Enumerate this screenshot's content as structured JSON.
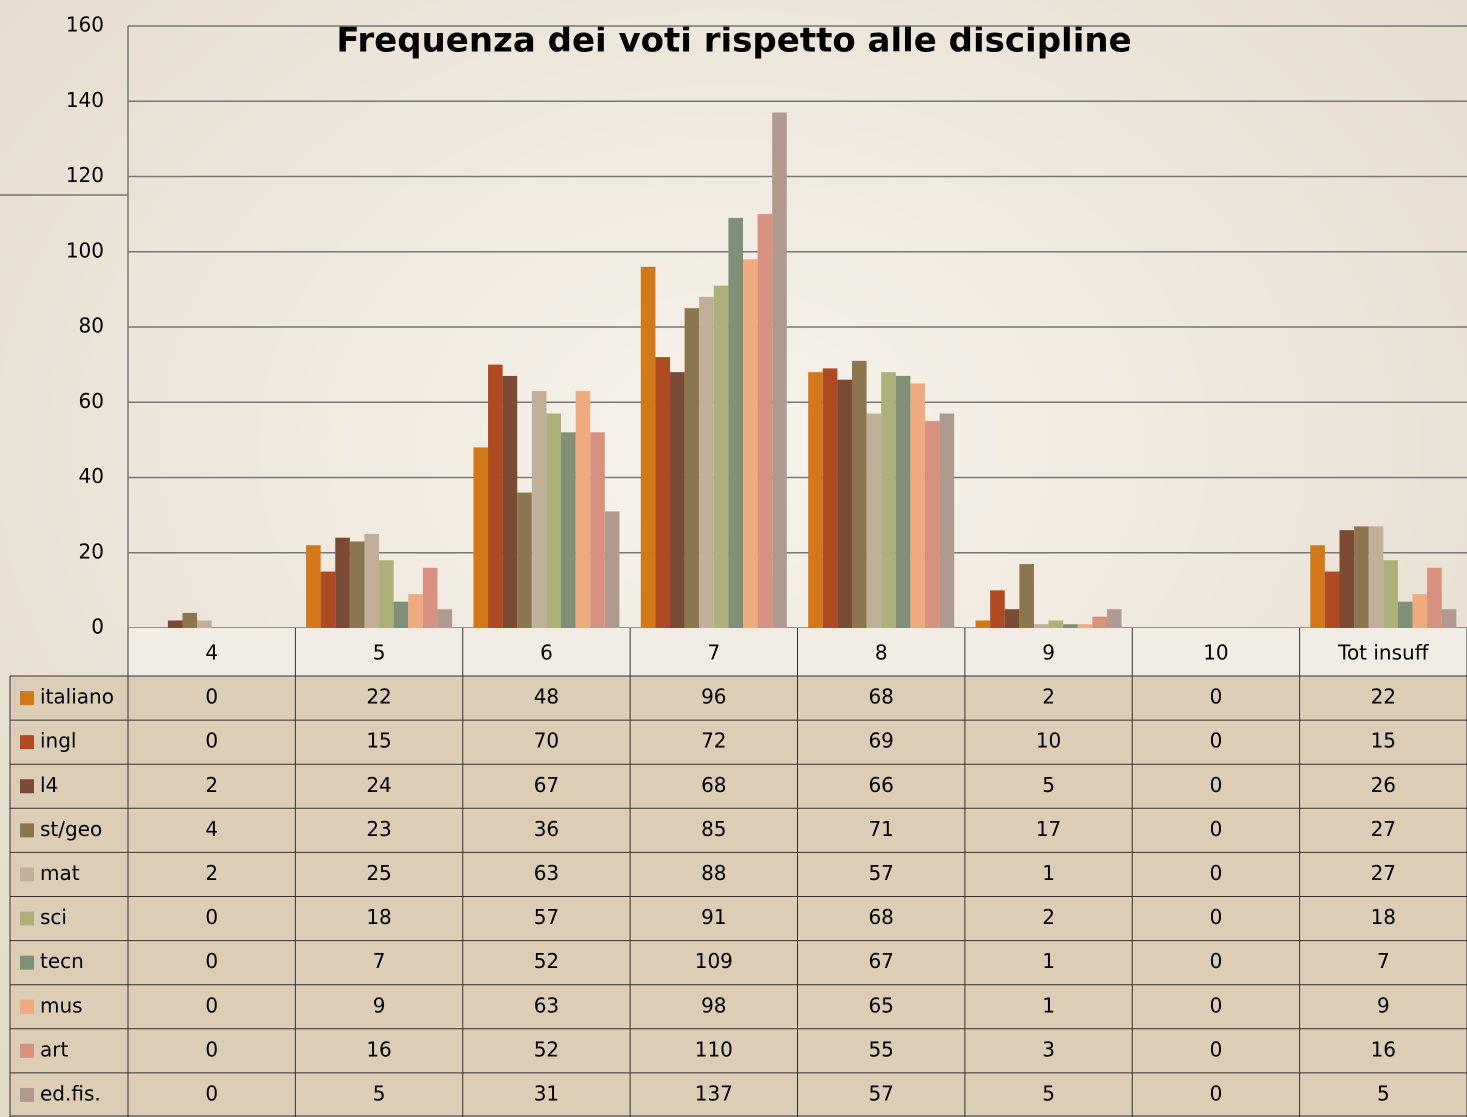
{
  "chart_data": {
    "type": "bar",
    "title": "Frequenza dei voti rispetto alle discipline",
    "categories": [
      "4",
      "5",
      "6",
      "7",
      "8",
      "9",
      "10",
      "Tot insuff"
    ],
    "ylim": [
      0,
      160
    ],
    "yticks": [
      0,
      20,
      40,
      60,
      80,
      100,
      120,
      140,
      160
    ],
    "grid": true,
    "series": [
      {
        "name": "italiano",
        "color": "#d2781a",
        "values": [
          0,
          22,
          48,
          96,
          68,
          2,
          0,
          22
        ]
      },
      {
        "name": "ingl",
        "color": "#b04a22",
        "values": [
          0,
          15,
          70,
          72,
          69,
          10,
          0,
          15
        ]
      },
      {
        "name": "l4",
        "color": "#7a4a35",
        "values": [
          2,
          24,
          67,
          68,
          66,
          5,
          0,
          26
        ]
      },
      {
        "name": "st/geo",
        "color": "#8c7650",
        "values": [
          4,
          23,
          36,
          85,
          71,
          17,
          0,
          27
        ]
      },
      {
        "name": "mat",
        "color": "#c0b09a",
        "values": [
          2,
          25,
          63,
          88,
          57,
          1,
          0,
          27
        ]
      },
      {
        "name": "sci",
        "color": "#aeb07a",
        "values": [
          0,
          18,
          57,
          91,
          68,
          2,
          0,
          18
        ]
      },
      {
        "name": "tecn",
        "color": "#7f8f78",
        "values": [
          0,
          7,
          52,
          109,
          67,
          1,
          0,
          7
        ]
      },
      {
        "name": "mus",
        "color": "#f0aa80",
        "values": [
          0,
          9,
          63,
          98,
          65,
          1,
          0,
          9
        ]
      },
      {
        "name": "art",
        "color": "#d89080",
        "values": [
          0,
          16,
          52,
          110,
          55,
          3,
          0,
          16
        ]
      },
      {
        "name": "ed.fis.",
        "color": "#b09a90",
        "values": [
          0,
          5,
          31,
          137,
          57,
          5,
          0,
          5
        ]
      }
    ]
  }
}
